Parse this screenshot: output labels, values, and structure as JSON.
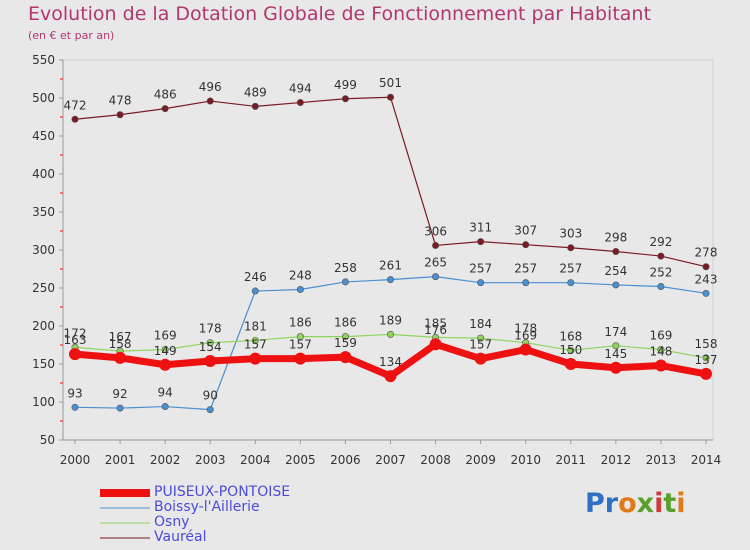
{
  "title": "Evolution de la Dotation Globale de Fonctionnement par Habitant",
  "subtitle": "(en € et par an)",
  "brand_logo": "Proxiti",
  "chart_data": {
    "type": "line",
    "x": [
      "2000",
      "2001",
      "2002",
      "2003",
      "2004",
      "2005",
      "2006",
      "2007",
      "2008",
      "2009",
      "2010",
      "2011",
      "2012",
      "2013",
      "2014"
    ],
    "ylim": [
      50,
      550
    ],
    "yticks": [
      50,
      100,
      150,
      200,
      250,
      300,
      350,
      400,
      450,
      500,
      550
    ],
    "grid": false,
    "legend_position": "bottom-left",
    "series": [
      {
        "name": "Vauréal",
        "color": "#7a1a22",
        "values": [
          472,
          478,
          486,
          496,
          489,
          494,
          499,
          501,
          306,
          311,
          307,
          303,
          298,
          292,
          278
        ]
      },
      {
        "name": "Boissy-l'Aillerie",
        "color": "#4a8fd0",
        "values": [
          93,
          92,
          94,
          90,
          246,
          248,
          258,
          261,
          265,
          257,
          257,
          257,
          254,
          252,
          243
        ]
      },
      {
        "name": "Osny",
        "color": "#8fd45c",
        "values": [
          172,
          167,
          169,
          178,
          181,
          186,
          186,
          189,
          185,
          184,
          178,
          168,
          174,
          169,
          158
        ]
      },
      {
        "name": "PUISEUX-PONTOISE",
        "color": "#ee1111",
        "values": [
          163,
          158,
          149,
          154,
          157,
          157,
          159,
          134,
          176,
          157,
          169,
          150,
          145,
          148,
          137
        ]
      }
    ]
  },
  "legend": [
    {
      "label": "PUISEUX-PONTOISE",
      "color": "#ee1111"
    },
    {
      "label": "Boissy-l'Aillerie",
      "color": "#4a8fd0"
    },
    {
      "label": "Osny",
      "color": "#8fd45c"
    },
    {
      "label": "Vauréal",
      "color": "#7a1a22"
    }
  ]
}
